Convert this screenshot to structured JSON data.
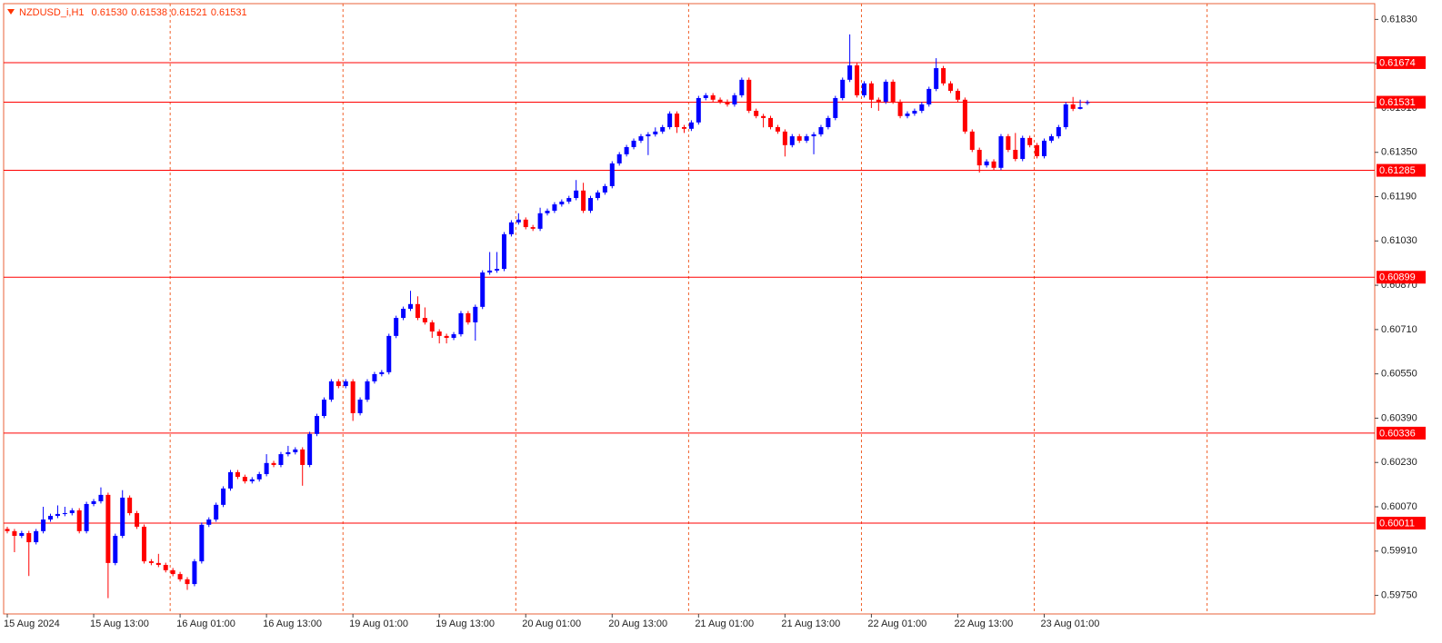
{
  "chart_data": {
    "type": "candlestick",
    "title": "NZDUSD_i,H1",
    "header_values": [
      "0.61530",
      "0.61538",
      "0.61521",
      "0.61531"
    ],
    "categories": [
      "15 Aug 2024",
      null,
      null,
      null,
      null,
      null,
      null,
      null,
      null,
      null,
      null,
      null,
      "15 Aug 13:00",
      null,
      null,
      null,
      null,
      null,
      null,
      null,
      null,
      null,
      null,
      null,
      "16 Aug 01:00",
      null,
      null,
      null,
      null,
      null,
      null,
      null,
      null,
      null,
      null,
      null,
      "16 Aug 13:00",
      null,
      null,
      null,
      null,
      null,
      null,
      null,
      null,
      null,
      null,
      null,
      "19 Aug 01:00",
      null,
      null,
      null,
      null,
      null,
      null,
      null,
      null,
      null,
      null,
      null,
      "19 Aug 13:00",
      null,
      null,
      null,
      null,
      null,
      null,
      null,
      null,
      null,
      null,
      null,
      "20 Aug 01:00",
      null,
      null,
      null,
      null,
      null,
      null,
      null,
      null,
      null,
      null,
      null,
      "20 Aug 13:00",
      null,
      null,
      null,
      null,
      null,
      null,
      null,
      null,
      null,
      null,
      null,
      "21 Aug 01:00",
      null,
      null,
      null,
      null,
      null,
      null,
      null,
      null,
      null,
      null,
      null,
      "21 Aug 13:00",
      null,
      null,
      null,
      null,
      null,
      null,
      null,
      null,
      null,
      null,
      null,
      "22 Aug 01:00",
      null,
      null,
      null,
      null,
      null,
      null,
      null,
      null,
      null,
      null,
      null,
      "22 Aug 13:00",
      null,
      null,
      null,
      null,
      null,
      null,
      null,
      null,
      null,
      null,
      null,
      "23 Aug 01:00",
      null,
      null,
      null,
      null,
      null,
      null
    ],
    "open": [
      0.5999,
      0.59982,
      0.59965,
      0.59975,
      0.59942,
      0.59982,
      0.60024,
      0.60037,
      0.60044,
      0.60047,
      0.60057,
      0.59982,
      0.6008,
      0.6009,
      0.60113,
      0.59867,
      0.59965,
      0.60103,
      0.60047,
      0.59998,
      0.59873,
      0.59867,
      0.5986,
      0.59841,
      0.59827,
      0.59808,
      0.59791,
      0.59873,
      0.60005,
      0.60024,
      0.60077,
      0.60136,
      0.60195,
      0.60178,
      0.60162,
      0.60169,
      0.60188,
      0.60228,
      0.60221,
      0.6026,
      0.60267,
      0.60277,
      0.60221,
      0.60333,
      0.60398,
      0.60457,
      0.60523,
      0.60506,
      0.60523,
      0.60408,
      0.60457,
      0.60523,
      0.60549,
      0.60556,
      0.60687,
      0.60752,
      0.60785,
      0.60802,
      0.60752,
      0.60736,
      0.60703,
      0.60687,
      0.6068,
      0.60693,
      0.60769,
      0.60736,
      0.60792,
      0.60916,
      0.60923,
      0.60929,
      0.61054,
      0.61097,
      0.61107,
      0.6108,
      0.61074,
      0.6113,
      0.61139,
      0.61162,
      0.61172,
      0.61185,
      0.61212,
      0.61139,
      0.61185,
      0.61205,
      0.61228,
      0.6131,
      0.61343,
      0.61369,
      0.61392,
      0.61408,
      0.61415,
      0.61425,
      0.61441,
      0.6149,
      0.61441,
      0.61435,
      0.61458,
      0.61546,
      0.61556,
      0.6154,
      0.61533,
      0.61523,
      0.61556,
      0.61612,
      0.615,
      0.61481,
      0.61474,
      0.61441,
      0.61425,
      0.61376,
      0.61408,
      0.61392,
      0.61408,
      0.61415,
      0.61441,
      0.61474,
      0.61546,
      0.61612,
      0.61664,
      0.61556,
      0.61599,
      0.6154,
      0.61533,
      0.61605,
      0.61533,
      0.61481,
      0.6149,
      0.615,
      0.61523,
      0.61579,
      0.61654,
      0.61599,
      0.61572,
      0.6154,
      0.61425,
      0.61359,
      0.61303,
      0.61317,
      0.61294,
      0.61408,
      0.61359,
      0.61326,
      0.61402,
      0.61376,
      0.61336,
      0.61392,
      0.61408,
      0.61441,
      0.61523,
      0.61507,
      0.6153
    ],
    "high": [
      0.59998,
      0.5999,
      0.59983,
      0.59983,
      0.5999,
      0.6007,
      0.60045,
      0.60075,
      0.6007,
      0.60065,
      0.60065,
      0.60088,
      0.60098,
      0.6014,
      0.60121,
      0.59973,
      0.6013,
      0.60111,
      0.60055,
      0.60006,
      0.59881,
      0.599,
      0.59868,
      0.59849,
      0.59835,
      0.59816,
      0.59881,
      0.60013,
      0.60032,
      0.60085,
      0.60144,
      0.60203,
      0.60203,
      0.60186,
      0.60177,
      0.60196,
      0.6026,
      0.60236,
      0.60268,
      0.6029,
      0.60285,
      0.60285,
      0.60341,
      0.60406,
      0.60465,
      0.60531,
      0.60531,
      0.60531,
      0.60531,
      0.60465,
      0.60531,
      0.60557,
      0.60564,
      0.60695,
      0.6076,
      0.60793,
      0.6085,
      0.6083,
      0.6079,
      0.60744,
      0.60711,
      0.60695,
      0.60701,
      0.60777,
      0.60777,
      0.608,
      0.60924,
      0.6099,
      0.6099,
      0.61062,
      0.61105,
      0.6113,
      0.61115,
      0.61088,
      0.6115,
      0.61147,
      0.6117,
      0.6118,
      0.61193,
      0.6125,
      0.6124,
      0.61193,
      0.61213,
      0.61236,
      0.61318,
      0.61351,
      0.61377,
      0.614,
      0.61416,
      0.61423,
      0.6144,
      0.61449,
      0.61498,
      0.61498,
      0.61449,
      0.61466,
      0.61554,
      0.61564,
      0.61564,
      0.61548,
      0.61541,
      0.61564,
      0.6162,
      0.6162,
      0.61508,
      0.61489,
      0.61482,
      0.61449,
      0.61433,
      0.61416,
      0.61416,
      0.61416,
      0.61423,
      0.61449,
      0.61482,
      0.61554,
      0.6162,
      0.61776,
      0.61672,
      0.61607,
      0.61607,
      0.61548,
      0.61613,
      0.61613,
      0.61541,
      0.61498,
      0.61508,
      0.61531,
      0.61587,
      0.6169,
      0.61662,
      0.61607,
      0.6158,
      0.61548,
      0.61433,
      0.61367,
      0.61325,
      0.61325,
      0.61416,
      0.61416,
      0.6142,
      0.6141,
      0.6141,
      0.61384,
      0.614,
      0.61416,
      0.61449,
      0.61531,
      0.6155,
      0.6154,
      0.61538
    ],
    "low": [
      0.59974,
      0.59906,
      0.59957,
      0.5982,
      0.59934,
      0.59974,
      0.60016,
      0.60029,
      0.60036,
      0.60039,
      0.59974,
      0.59974,
      0.60072,
      0.60082,
      0.5974,
      0.59859,
      0.59957,
      0.60039,
      0.5999,
      0.59865,
      0.59859,
      0.59852,
      0.59833,
      0.59819,
      0.598,
      0.5977,
      0.59783,
      0.59865,
      0.59997,
      0.60016,
      0.60069,
      0.60128,
      0.6017,
      0.60154,
      0.60154,
      0.60161,
      0.6018,
      0.60213,
      0.60213,
      0.60252,
      0.60259,
      0.60146,
      0.60213,
      0.60325,
      0.6039,
      0.60449,
      0.60498,
      0.60498,
      0.6038,
      0.604,
      0.60449,
      0.60515,
      0.60541,
      0.60548,
      0.60679,
      0.60744,
      0.60777,
      0.60744,
      0.60728,
      0.6068,
      0.6066,
      0.6066,
      0.60672,
      0.60685,
      0.60728,
      0.6067,
      0.60784,
      0.60908,
      0.60915,
      0.60921,
      0.61046,
      0.61089,
      0.61072,
      0.61066,
      0.61066,
      0.61122,
      0.61131,
      0.61154,
      0.61164,
      0.61177,
      0.61131,
      0.61131,
      0.61177,
      0.61197,
      0.6122,
      0.61302,
      0.61335,
      0.61361,
      0.61384,
      0.6134,
      0.61407,
      0.61417,
      0.61433,
      0.6142,
      0.6142,
      0.61427,
      0.6145,
      0.61538,
      0.61532,
      0.61525,
      0.61515,
      0.61515,
      0.61548,
      0.61492,
      0.61473,
      0.6144,
      0.61433,
      0.61417,
      0.61335,
      0.61368,
      0.61384,
      0.61384,
      0.61343,
      0.61407,
      0.61433,
      0.61466,
      0.61538,
      0.61604,
      0.61548,
      0.61548,
      0.6151,
      0.615,
      0.61525,
      0.61525,
      0.61473,
      0.61473,
      0.61482,
      0.61492,
      0.61515,
      0.61571,
      0.61591,
      0.61564,
      0.61532,
      0.61417,
      0.61351,
      0.61277,
      0.61295,
      0.61286,
      0.61286,
      0.61351,
      0.61318,
      0.61318,
      0.61368,
      0.61328,
      0.61328,
      0.61384,
      0.614,
      0.61433,
      0.61499,
      0.61505,
      0.61521
    ],
    "close": [
      0.59982,
      0.59965,
      0.59975,
      0.59942,
      0.59982,
      0.60024,
      0.60037,
      0.60044,
      0.60047,
      0.60057,
      0.59982,
      0.6008,
      0.6009,
      0.60113,
      0.59867,
      0.59965,
      0.60103,
      0.60047,
      0.59998,
      0.59873,
      0.59867,
      0.5986,
      0.59841,
      0.59827,
      0.59808,
      0.59791,
      0.59873,
      0.60005,
      0.60024,
      0.60077,
      0.60136,
      0.60195,
      0.60178,
      0.60162,
      0.60169,
      0.60188,
      0.60228,
      0.60221,
      0.6026,
      0.60267,
      0.60277,
      0.60221,
      0.60333,
      0.60398,
      0.60457,
      0.60523,
      0.60506,
      0.60523,
      0.60408,
      0.60457,
      0.60523,
      0.60549,
      0.60556,
      0.60687,
      0.60752,
      0.60785,
      0.60802,
      0.60752,
      0.60736,
      0.60703,
      0.60687,
      0.6068,
      0.60693,
      0.60769,
      0.60736,
      0.60792,
      0.60916,
      0.60923,
      0.60929,
      0.61054,
      0.61097,
      0.61107,
      0.6108,
      0.61074,
      0.6113,
      0.61139,
      0.61162,
      0.61172,
      0.61185,
      0.61212,
      0.61139,
      0.61185,
      0.61205,
      0.61228,
      0.6131,
      0.61343,
      0.61369,
      0.61392,
      0.61408,
      0.61415,
      0.61425,
      0.61441,
      0.6149,
      0.61441,
      0.61435,
      0.61458,
      0.61546,
      0.61556,
      0.6154,
      0.61533,
      0.61523,
      0.61556,
      0.61612,
      0.615,
      0.61481,
      0.61474,
      0.61441,
      0.61425,
      0.61376,
      0.61408,
      0.61392,
      0.61408,
      0.61415,
      0.61441,
      0.61474,
      0.61546,
      0.61612,
      0.61664,
      0.61556,
      0.61599,
      0.6154,
      0.61533,
      0.61605,
      0.61533,
      0.61481,
      0.6149,
      0.615,
      0.61523,
      0.61579,
      0.61654,
      0.61599,
      0.61572,
      0.6154,
      0.61425,
      0.61359,
      0.61303,
      0.61317,
      0.61294,
      0.61408,
      0.61359,
      0.61326,
      0.61402,
      0.61376,
      0.61336,
      0.61392,
      0.61408,
      0.61441,
      0.61523,
      0.61507,
      0.61513,
      0.61531
    ],
    "up_color": "#0000ff",
    "down_color": "#ff0000",
    "ylim": [
      0.59683,
      0.61887
    ],
    "yticks": [
      {
        "value": 0.6183,
        "label": "0.61830"
      },
      {
        "value": 0.6167,
        "label": "0.61670"
      },
      {
        "value": 0.6151,
        "label": "0.61510"
      },
      {
        "value": 0.6135,
        "label": "0.61350"
      },
      {
        "value": 0.6119,
        "label": "0.61190"
      },
      {
        "value": 0.6103,
        "label": "0.61030"
      },
      {
        "value": 0.6087,
        "label": "0.60870"
      },
      {
        "value": 0.6071,
        "label": "0.60710"
      },
      {
        "value": 0.6055,
        "label": "0.60550"
      },
      {
        "value": 0.6039,
        "label": "0.60390"
      },
      {
        "value": 0.6023,
        "label": "0.60230"
      },
      {
        "value": 0.6007,
        "label": "0.60070"
      },
      {
        "value": 0.5991,
        "label": "0.59910"
      },
      {
        "value": 0.5975,
        "label": "0.59750"
      }
    ],
    "hlines": [
      {
        "value": 0.61674,
        "label": "0.61674"
      },
      {
        "value": 0.61285,
        "label": "0.61285"
      },
      {
        "value": 0.60899,
        "label": "0.60899"
      },
      {
        "value": 0.60336,
        "label": "0.60336"
      },
      {
        "value": 0.60011,
        "label": "0.60011"
      }
    ],
    "price_line": {
      "value": 0.61531,
      "label": "0.61531"
    },
    "line_color": "#ff0000",
    "grid": true
  }
}
